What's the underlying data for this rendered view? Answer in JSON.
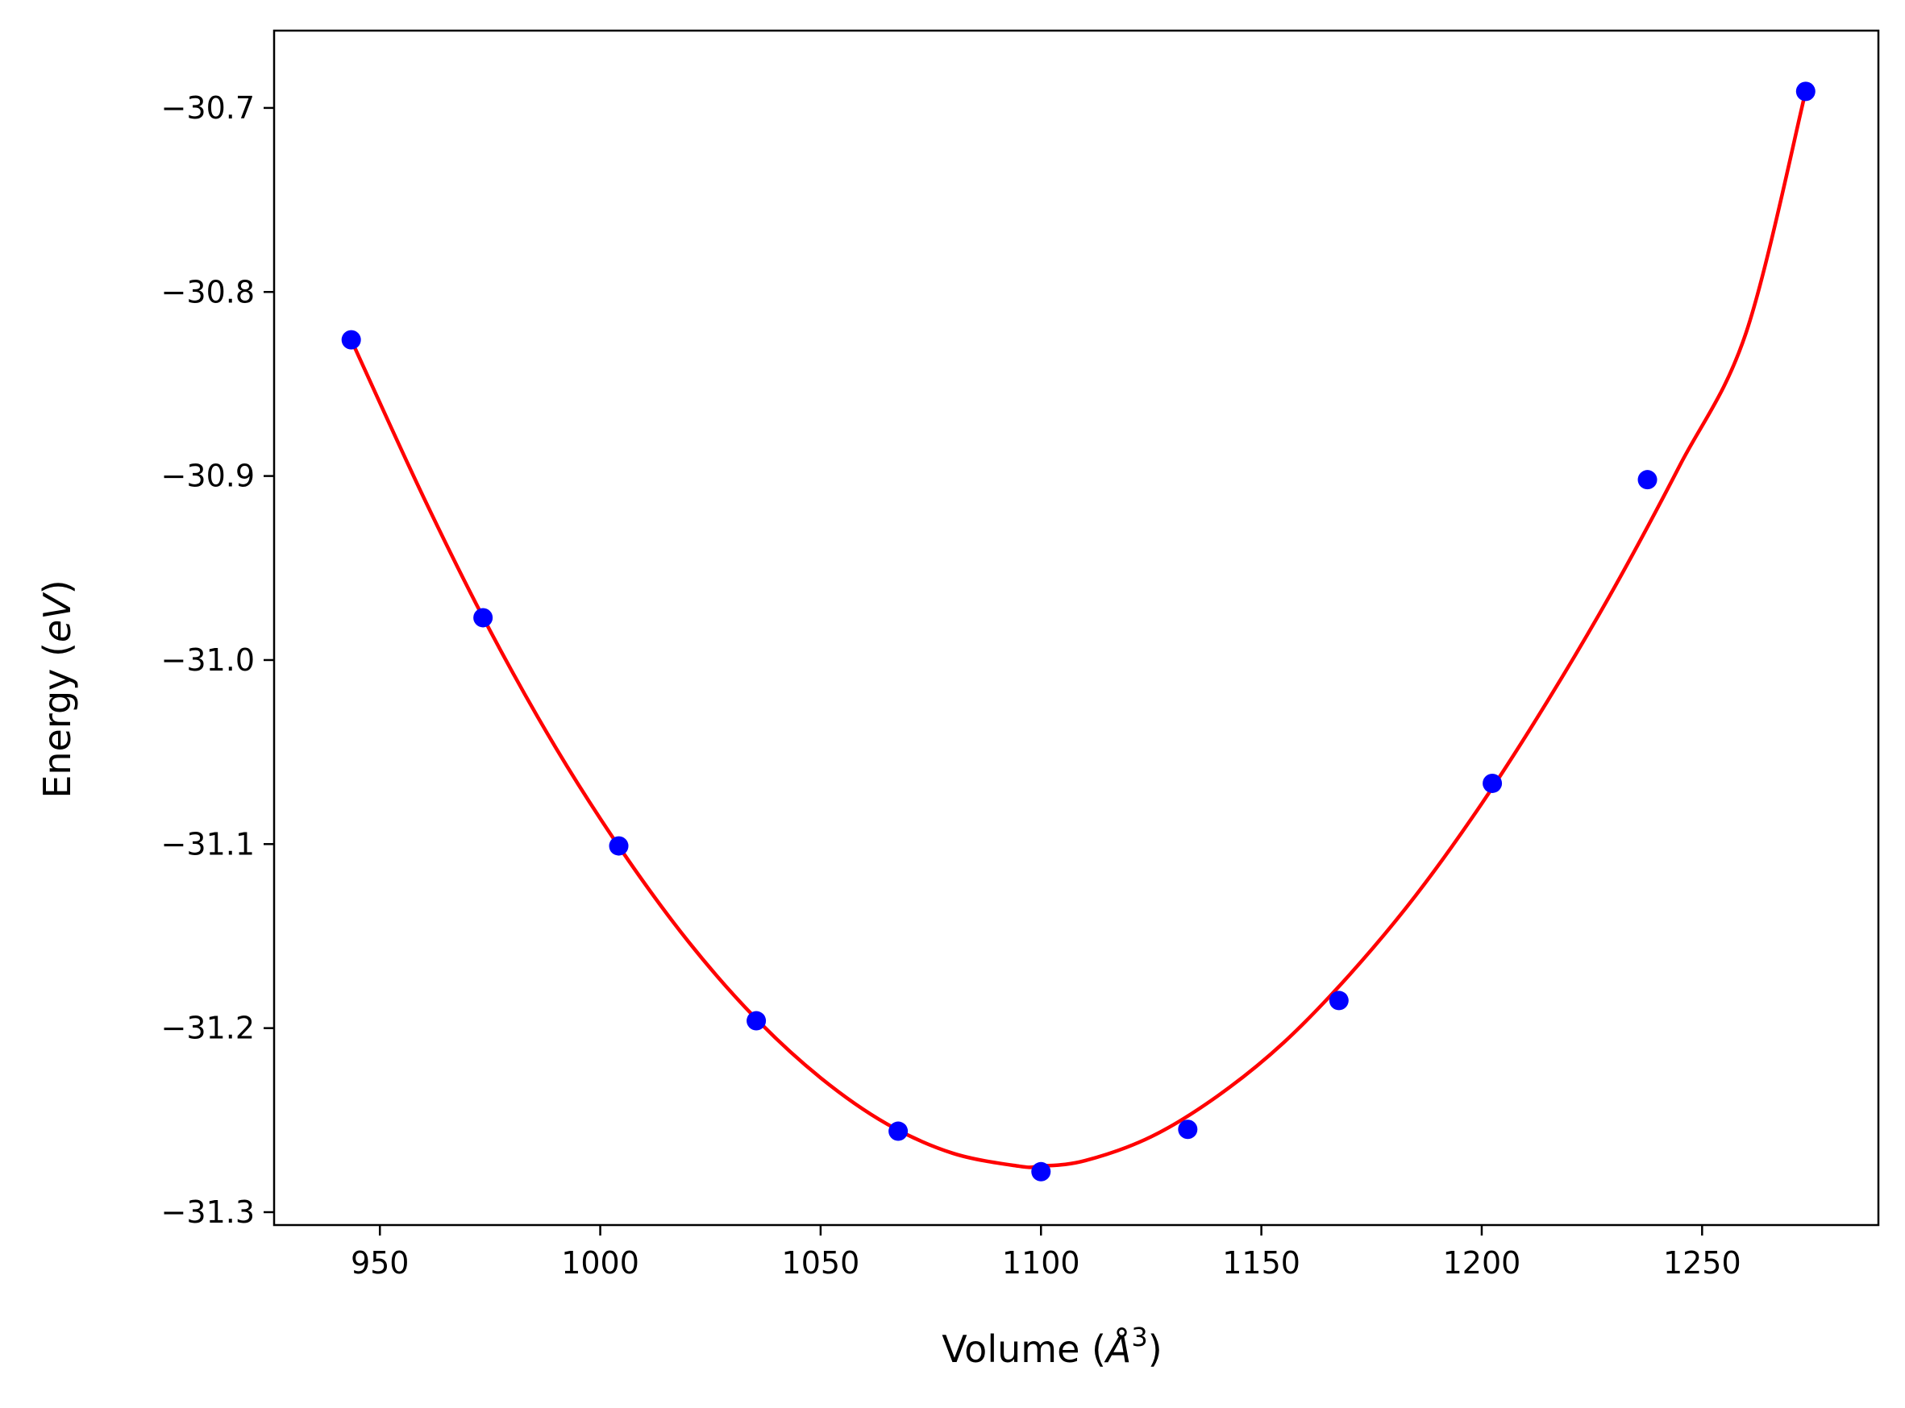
{
  "chart_data": {
    "type": "scatter",
    "title": "",
    "xlabel": {
      "pre": "Volume (",
      "sym": "Å",
      "sup": "3",
      "post": ")"
    },
    "ylabel": {
      "pre": "Energy (",
      "sym": "eV",
      "post": ")"
    },
    "xlim": [
      926,
      1290
    ],
    "ylim": [
      -31.307,
      -30.658
    ],
    "x_ticks": [
      950,
      1000,
      1050,
      1100,
      1150,
      1200,
      1250
    ],
    "x_tick_labels": [
      "950",
      "1000",
      "1050",
      "1100",
      "1150",
      "1200",
      "1250"
    ],
    "y_ticks": [
      -30.7,
      -30.8,
      -30.9,
      -31.0,
      -31.1,
      -31.2,
      -31.3
    ],
    "y_tick_labels": [
      "−30.7",
      "−30.8",
      "−30.9",
      "−31.0",
      "−31.1",
      "−31.2",
      "−31.3"
    ],
    "grid": false,
    "series": [
      {
        "kind": "points",
        "color": "#0000ff",
        "x": [
          943.5,
          973.4,
          1004.2,
          1035.4,
          1067.6,
          1100.0,
          1133.3,
          1167.6,
          1202.4,
          1237.6,
          1273.5
        ],
        "y": [
          -30.826,
          -30.977,
          -31.101,
          -31.196,
          -31.256,
          -31.278,
          -31.255,
          -31.185,
          -31.067,
          -30.902,
          -30.691
        ]
      },
      {
        "kind": "fit-curve",
        "color": "#ff0000",
        "x": [
          943.5,
          960,
          975,
          990,
          1005,
          1020,
          1035,
          1050,
          1065,
          1080,
          1095,
          1100,
          1110,
          1125,
          1140,
          1155,
          1170,
          1185,
          1200,
          1215,
          1230,
          1245,
          1260,
          1273.5
        ],
        "y": [
          -30.826,
          -30.912,
          -30.984,
          -31.048,
          -31.104,
          -31.153,
          -31.194,
          -31.227,
          -31.252,
          -31.268,
          -31.275,
          -31.275,
          -31.272,
          -31.259,
          -31.237,
          -31.208,
          -31.171,
          -31.128,
          -31.078,
          -31.022,
          -30.961,
          -30.894,
          -30.822,
          -30.691
        ]
      }
    ]
  }
}
